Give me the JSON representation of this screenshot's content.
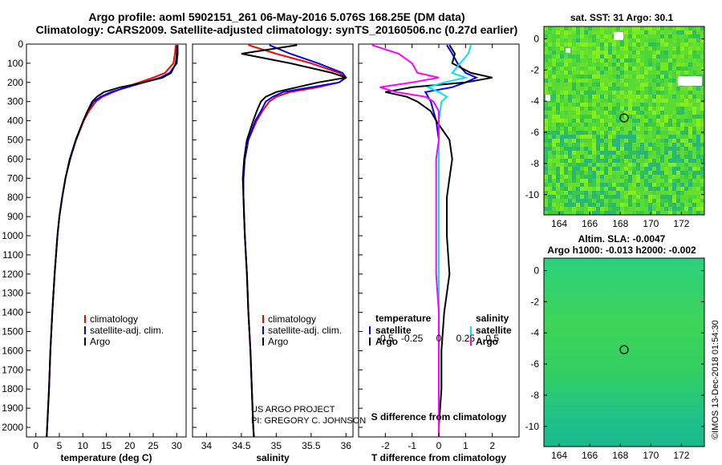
{
  "header": {
    "line1": "Argo profile: aoml 5902151_261 06-May-2016 5.076S 168.25E (DM data)",
    "line2": "Climatology: CARS2009. Satellite-adjusted climatology: synTS_20160506.nc (0.27d earlier)"
  },
  "map_titles": {
    "sst": "sat. SST: 31 Argo: 30.1",
    "sla1": "Altim. SLA: -0.0047",
    "sla2": "Argo h1000: -0.013 h2000: -0.002"
  },
  "credits": {
    "project": "US ARGO PROJECT",
    "pi": "PI: GREGORY C. JOHNSON",
    "stamp": "©IMOS 13-Dec-2018 01:54:30"
  },
  "colors": {
    "climatology": "#ff0000",
    "satellite": "#0000ff",
    "argo": "#000000",
    "sal_sat": "#00e5ee",
    "sal_argo": "#ff00ff"
  },
  "chart_data": [
    {
      "type": "line",
      "id": "temperature",
      "xlabel": "temperature (deg C)",
      "xlim": [
        -2,
        32
      ],
      "ylim": [
        0,
        2050
      ],
      "xticks": [
        0,
        5,
        10,
        15,
        20,
        25,
        30
      ],
      "yticks": [
        0,
        100,
        200,
        300,
        400,
        500,
        600,
        700,
        800,
        900,
        1000,
        1100,
        1200,
        1300,
        1400,
        1500,
        1600,
        1700,
        1800,
        1900,
        2000
      ],
      "legend": [
        "climatology",
        "satellite-adj. clim.",
        "Argo"
      ],
      "depth": [
        5,
        50,
        100,
        150,
        175,
        200,
        225,
        250,
        275,
        300,
        350,
        400,
        500,
        600,
        700,
        800,
        900,
        1000,
        1200,
        1400,
        1600,
        1800,
        2000,
        2050
      ],
      "series": [
        {
          "name": "climatology",
          "color": "#ff0000",
          "values": [
            29.8,
            29.6,
            29.3,
            27.5,
            25,
            22,
            19,
            16.5,
            14.2,
            12.8,
            11.3,
            10.2,
            8.6,
            7.3,
            6.3,
            5.6,
            5.0,
            4.6,
            4.0,
            3.5,
            3.1,
            2.8,
            2.4,
            2.3
          ]
        },
        {
          "name": "satellite-adj. clim.",
          "color": "#0000ff",
          "values": [
            30.2,
            30.2,
            30.0,
            28.5,
            26.5,
            23,
            19.5,
            16,
            13.8,
            12.3,
            11,
            10.1,
            8.5,
            7.2,
            6.3,
            5.6,
            5.0,
            4.6,
            4.0,
            3.5,
            3.1,
            2.8,
            2.4,
            2.3
          ]
        },
        {
          "name": "Argo",
          "color": "#000000",
          "values": [
            30.1,
            30.0,
            29.8,
            28.8,
            27,
            23,
            18,
            14.5,
            13,
            12,
            11,
            10.1,
            8.5,
            7.3,
            6.3,
            5.6,
            5.0,
            4.6,
            4.0,
            3.5,
            3.1,
            2.8,
            2.4,
            2.3
          ]
        }
      ]
    },
    {
      "type": "line",
      "id": "salinity",
      "xlabel": "salinity",
      "xlim": [
        33.8,
        36.1
      ],
      "ylim": [
        0,
        2050
      ],
      "xticks": [
        34,
        34.5,
        35,
        35.5,
        36
      ],
      "xticklabels": [
        "34",
        "34.5",
        "35",
        "35.5",
        "36"
      ],
      "legend": [
        "climatology",
        "satellite-adj. clim.",
        "Argo"
      ],
      "depth": [
        5,
        50,
        100,
        150,
        175,
        200,
        225,
        250,
        275,
        300,
        350,
        400,
        500,
        600,
        700,
        800,
        900,
        1000,
        1200,
        1400,
        1600,
        1800,
        2000,
        2050
      ],
      "series": [
        {
          "name": "climatology",
          "color": "#ff0000",
          "values": [
            34.6,
            35.0,
            35.5,
            35.9,
            36.0,
            35.9,
            35.6,
            35.2,
            35.0,
            34.9,
            34.8,
            34.72,
            34.6,
            34.55,
            34.53,
            34.53,
            34.54,
            34.55,
            34.58,
            34.6,
            34.63,
            34.65,
            34.67,
            34.68
          ]
        },
        {
          "name": "satellite-adj. clim.",
          "color": "#0000ff",
          "values": [
            34.9,
            35.2,
            35.6,
            35.95,
            36.0,
            35.9,
            35.5,
            35.1,
            34.95,
            34.85,
            34.78,
            34.7,
            34.6,
            34.55,
            34.53,
            34.53,
            34.54,
            34.55,
            34.58,
            34.6,
            34.63,
            34.65,
            34.67,
            34.68
          ]
        },
        {
          "name": "Argo",
          "color": "#000000",
          "values": [
            35.3,
            34.5,
            35.2,
            35.8,
            36.0,
            35.6,
            35.3,
            35.0,
            34.85,
            34.78,
            34.72,
            34.67,
            34.58,
            34.54,
            34.52,
            34.53,
            34.54,
            34.55,
            34.58,
            34.6,
            34.63,
            34.65,
            34.67,
            34.68
          ]
        }
      ]
    },
    {
      "type": "line",
      "id": "difference",
      "xlabel": "T difference from climatology",
      "xlabel2": "S difference from climatology",
      "xlim": [
        -3,
        3
      ],
      "ylim": [
        0,
        2050
      ],
      "xticks": [
        -2,
        -1,
        0,
        1,
        2
      ],
      "s_ticklabels": [
        "-0.5",
        "-0.25",
        "0",
        "0.25",
        "0.5"
      ],
      "legend_left": {
        "title": "temperature",
        "items": [
          "satellite",
          "Argo"
        ]
      },
      "legend_right": {
        "title": "salinity",
        "items": [
          "satellite",
          "Argo"
        ]
      },
      "depth": [
        5,
        50,
        100,
        150,
        175,
        200,
        225,
        250,
        275,
        300,
        350,
        400,
        500,
        600,
        700,
        800,
        900,
        1000,
        1200,
        1400,
        1600,
        1800,
        2000,
        2050
      ],
      "series": [
        {
          "name": "T satellite",
          "color": "#0000ff",
          "values": [
            0.3,
            0.5,
            0.7,
            1.0,
            1.4,
            1.0,
            0.5,
            -0.5,
            -0.4,
            -0.3,
            -0.2,
            -0.1,
            0,
            0,
            0,
            0,
            0,
            0,
            0,
            0,
            0,
            0,
            0,
            0
          ]
        },
        {
          "name": "T Argo",
          "color": "#000000",
          "values": [
            0.4,
            0.6,
            0.5,
            1.2,
            2.0,
            1.0,
            -1.0,
            -2.0,
            -1.2,
            -0.8,
            -0.3,
            -0.1,
            0.4,
            0.5,
            0.4,
            0.3,
            0.3,
            0.3,
            0.4,
            0.2,
            0.1,
            0.1,
            0,
            0
          ]
        },
        {
          "name": "S satellite",
          "color": "#00e5ee",
          "values": [
            1.2,
            1.1,
            0.8,
            0.5,
            1.0,
            0.2,
            -0.4,
            0.0,
            0.3,
            0.1,
            0.05,
            0,
            0,
            0,
            0,
            0,
            0,
            0,
            0,
            0,
            0,
            0,
            0,
            0
          ]
        },
        {
          "name": "S Argo",
          "color": "#ff00ff",
          "values": [
            -2.5,
            -1.5,
            -1.0,
            -0.8,
            0,
            -1.0,
            -2.2,
            -1.6,
            -0.5,
            -0.2,
            0,
            0,
            0,
            -0.1,
            -0.1,
            -0.1,
            -0.1,
            -0.1,
            -0.1,
            0,
            0,
            0,
            0,
            0
          ]
        }
      ]
    },
    {
      "type": "heatmap",
      "id": "sst_map",
      "xticks": [
        164,
        166,
        168,
        170,
        172
      ],
      "yticks": [
        0,
        -2,
        -4,
        -6,
        -8,
        -10
      ],
      "xlim": [
        163,
        173.5
      ],
      "ylim": [
        -11.3,
        0.8
      ],
      "marker": {
        "lon": 168.25,
        "lat": -5.076
      }
    },
    {
      "type": "heatmap",
      "id": "sla_map",
      "xticks": [
        164,
        166,
        168,
        170,
        172
      ],
      "yticks": [
        0,
        -2,
        -4,
        -6,
        -8,
        -10
      ],
      "xlim": [
        163,
        173.5
      ],
      "ylim": [
        -11.3,
        0.8
      ],
      "marker": {
        "lon": 168.25,
        "lat": -5.076
      }
    }
  ]
}
